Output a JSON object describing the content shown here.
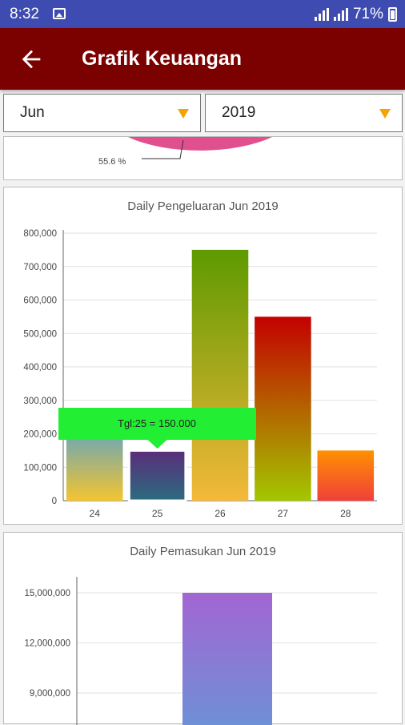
{
  "status": {
    "time": "8:32",
    "battery": "71%"
  },
  "app_bar": {
    "title": "Grafik Keuangan"
  },
  "filters": {
    "month": "Jun",
    "year": "2019"
  },
  "pie_card": {
    "label": "55.6 %"
  },
  "chart_data": [
    {
      "type": "bar",
      "title": "Daily Pengeluaran Jun 2019",
      "categories": [
        "24",
        "25",
        "26",
        "27",
        "28"
      ],
      "values": [
        200000,
        150000,
        750000,
        550000,
        150000
      ],
      "ylim": [
        0,
        800000
      ],
      "yticks": [
        "0",
        "100,000",
        "200,000",
        "300,000",
        "400,000",
        "500,000",
        "600,000",
        "700,000",
        "800,000"
      ],
      "grid": true,
      "tooltip": "Tgl:25 = 150.000",
      "gradients": [
        [
          "#6fa8b3",
          "#f4c430"
        ],
        [
          "#5a2d7a",
          "#2b6b80"
        ],
        [
          "#5e9a00",
          "#f4b83a"
        ],
        [
          "#c40000",
          "#a3c700"
        ],
        [
          "#ff9100",
          "#f0403a"
        ]
      ]
    },
    {
      "type": "bar",
      "title": "Daily Pemasukan Jun 2019",
      "values": [
        15000000
      ],
      "yticks_visible": [
        "9,000,000",
        "12,000,000",
        "15,000,000"
      ],
      "yvals_visible": [
        9000000,
        12000000,
        15000000
      ],
      "grid": true,
      "gradients": [
        [
          "#a366d3",
          "#6f8fd6"
        ]
      ]
    }
  ]
}
